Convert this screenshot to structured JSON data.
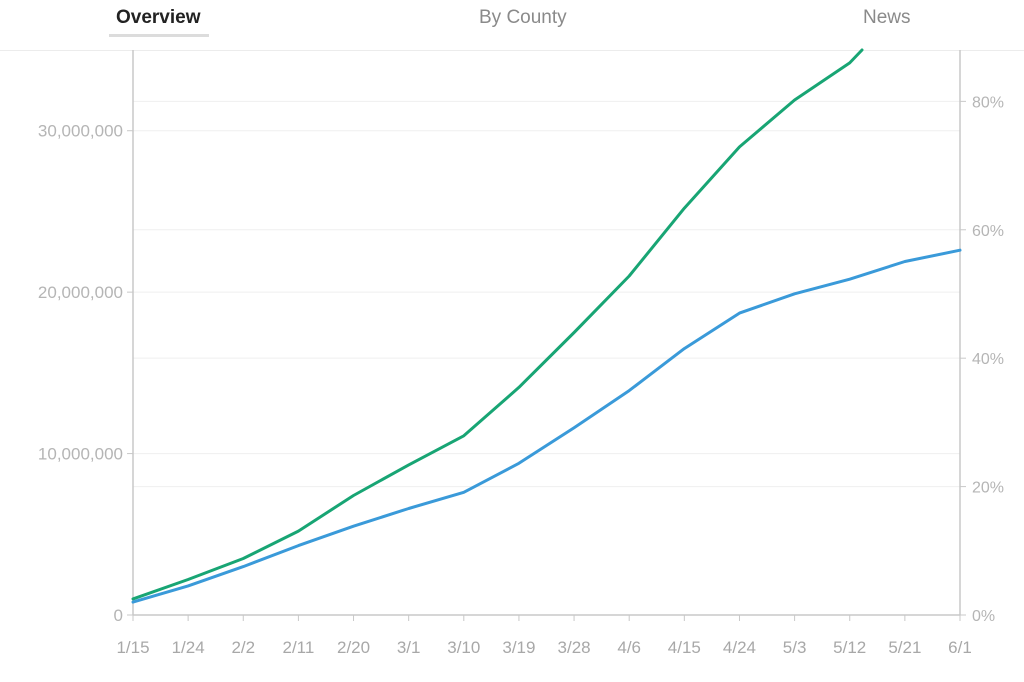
{
  "tabs": [
    {
      "label": "Overview",
      "active": true
    },
    {
      "label": "By County",
      "active": false
    },
    {
      "label": "News",
      "active": false
    }
  ],
  "chart_data": {
    "type": "line",
    "title": "",
    "xlabel": "",
    "ylabel": "",
    "x_ticks": [
      "1/15",
      "1/24",
      "2/2",
      "2/11",
      "2/20",
      "3/1",
      "3/10",
      "3/19",
      "3/28",
      "4/6",
      "4/15",
      "4/24",
      "5/3",
      "5/12",
      "5/21",
      "6/1"
    ],
    "ylim_left": [
      0,
      35000000
    ],
    "ylim_right": [
      0,
      0.88
    ],
    "y_ticks_left": [
      "0",
      "10,000,000",
      "20,000,000",
      "30,000,000"
    ],
    "y_ticks_right": [
      "0%",
      "20%",
      "40%",
      "60%",
      "80%"
    ],
    "grid": true,
    "colors": {
      "series_green": "#18a574",
      "series_blue": "#3a9ad9",
      "axis": "#c8c8c8",
      "grid": "#efefef"
    },
    "series": [
      {
        "axis": "left",
        "color": "#18a574",
        "x": [
          "1/15",
          "1/24",
          "2/2",
          "2/11",
          "2/20",
          "3/1",
          "3/10",
          "3/19",
          "3/28",
          "4/6",
          "4/15",
          "4/24",
          "5/3",
          "5/12",
          "5/14"
        ],
        "values": [
          1000000,
          2200000,
          3500000,
          5200000,
          7400000,
          9300000,
          11100000,
          14100000,
          17500000,
          21000000,
          25200000,
          29000000,
          31900000,
          34200000,
          35000000
        ]
      },
      {
        "axis": "left",
        "color": "#3a9ad9",
        "x": [
          "1/15",
          "1/24",
          "2/2",
          "2/11",
          "2/20",
          "3/1",
          "3/10",
          "3/19",
          "3/28",
          "4/6",
          "4/15",
          "4/24",
          "5/3",
          "5/12",
          "5/21",
          "6/1"
        ],
        "values": [
          800000,
          1800000,
          3000000,
          4300000,
          5500000,
          6600000,
          7600000,
          9400000,
          11600000,
          13900000,
          16500000,
          18700000,
          19900000,
          20800000,
          21900000,
          22600000
        ]
      }
    ]
  }
}
